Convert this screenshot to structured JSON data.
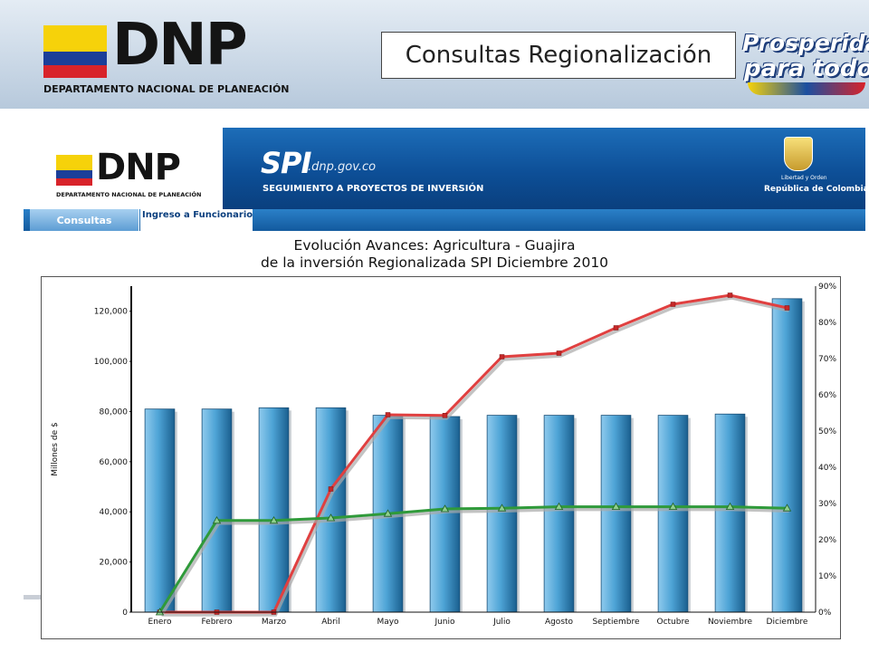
{
  "header": {
    "logo_text": "DNP",
    "logo_subtitle": "DEPARTAMENTO NACIONAL DE PLANEACIÓN",
    "page_title": "Consultas Regionalización",
    "slogan_line1": "Prosperidad",
    "slogan_line2": "para todos",
    "flag_colors": [
      "#f6d20a",
      "#1b3f99",
      "#d8232a"
    ]
  },
  "banner": {
    "logo_text": "DNP",
    "logo_subtitle": "DEPARTAMENTO NACIONAL DE PLANEACIÓN",
    "spi_text": "SPI",
    "spi_domain": ".dnp.gov.co",
    "spi_subtitle": "SEGUIMIENTO A PROYECTOS DE INVERSIÓN",
    "motto": "Libertad y Orden",
    "country": "República de Colombia"
  },
  "nav": {
    "consultas_label": "Consultas",
    "ingreso_label": "Ingreso a Funcionarios"
  },
  "chart_data": {
    "type": "bar",
    "title": "Evolución Avances: Agricultura - Guajira",
    "subtitle": "de la inversión Regionalizada SPI Diciembre 2010",
    "ylabel": "Millones de $",
    "xlabel": "",
    "categories": [
      "Enero",
      "Febrero",
      "Marzo",
      "Abril",
      "Mayo",
      "Junio",
      "Julio",
      "Agosto",
      "Septiembre",
      "Octubre",
      "Noviembre",
      "Diciembre"
    ],
    "ylim": [
      0,
      130000
    ],
    "y_ticks": [
      0,
      20000,
      40000,
      60000,
      80000,
      100000,
      120000
    ],
    "y_tick_labels": [
      "0",
      "20,000",
      "40,000",
      "60,000",
      "80,000",
      "100,000",
      "120,000"
    ],
    "y2lim": [
      0,
      90
    ],
    "y2_ticks": [
      0,
      10,
      20,
      30,
      40,
      50,
      60,
      70,
      80,
      90
    ],
    "y2_tick_labels": [
      "0%",
      "10%",
      "20%",
      "30%",
      "40%",
      "50%",
      "60%",
      "70%",
      "80%",
      "90%"
    ],
    "grid": false,
    "series": [
      {
        "kind": "bar",
        "axis": "left",
        "color": "#3c97c9",
        "values": [
          81000,
          81000,
          81500,
          81500,
          78500,
          78000,
          78500,
          78500,
          78500,
          78500,
          79000,
          125000
        ]
      },
      {
        "kind": "line",
        "axis": "right",
        "color": "#e04040",
        "marker": "square",
        "values": [
          0,
          0,
          0,
          34,
          54.5,
          54.3,
          70.5,
          71.5,
          78.5,
          85,
          87.5,
          84
        ]
      },
      {
        "kind": "line",
        "axis": "right",
        "color": "#2f9a3a",
        "marker": "triangle",
        "values": [
          0,
          25.3,
          25.3,
          26,
          27.2,
          28.5,
          28.7,
          29.1,
          29.1,
          29.1,
          29.1,
          28.7
        ]
      }
    ]
  }
}
